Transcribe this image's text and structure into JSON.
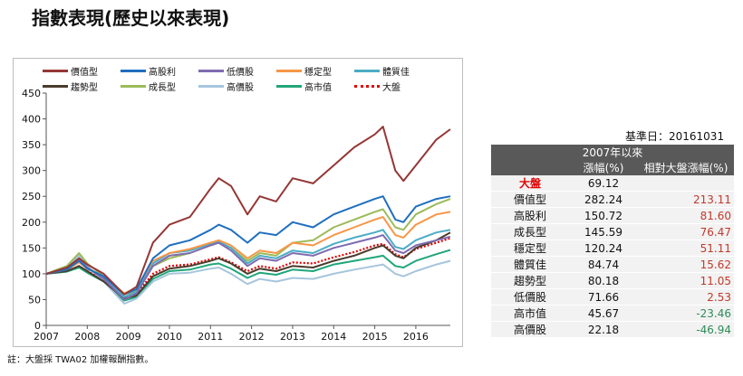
{
  "title": "指數表現(歷史以來表現)",
  "footnote": "註：大盤採 TWA02 加權報酬指數。",
  "base_date": "基準日：20161031",
  "table": {
    "header_top": "2007年以來",
    "col1": "漲幅(%)",
    "col2": "相對大盤漲幅(%)",
    "rows": [
      {
        "name": "大盤",
        "v1": "69.12",
        "v2": ""
      },
      {
        "name": "價值型",
        "v1": "282.24",
        "v2": "213.11"
      },
      {
        "name": "高股利",
        "v1": "150.72",
        "v2": "81.60"
      },
      {
        "name": "成長型",
        "v1": "145.59",
        "v2": "76.47"
      },
      {
        "name": "穩定型",
        "v1": "120.24",
        "v2": "51.11"
      },
      {
        "name": "體質佳",
        "v1": "84.74",
        "v2": "15.62"
      },
      {
        "name": "趨勢型",
        "v1": "80.18",
        "v2": "11.05"
      },
      {
        "name": "低價股",
        "v1": "71.66",
        "v2": "2.53"
      },
      {
        "name": "高市值",
        "v1": "45.67",
        "v2": "-23.46"
      },
      {
        "name": "高價股",
        "v1": "22.18",
        "v2": "-46.94"
      }
    ]
  },
  "chart_data": {
    "type": "line",
    "ylim": [
      0,
      450
    ],
    "yticks": [
      0,
      50,
      100,
      150,
      200,
      250,
      300,
      350,
      400,
      450
    ],
    "xlim": [
      2007,
      2016.84
    ],
    "xticks": [
      "2007",
      "2008",
      "2009",
      "2010",
      "2011",
      "2012",
      "2013",
      "2014",
      "2015",
      "2016"
    ],
    "legend_rows": [
      [
        "價值型",
        "高股利",
        "低價股",
        "穩定型",
        "體質佳"
      ],
      [
        "趨勢型",
        "成長型",
        "高價股",
        "高市值",
        "大盤"
      ]
    ],
    "series": [
      {
        "name": "價值型",
        "color": "#953735",
        "x": [
          2007,
          2007.5,
          2007.8,
          2008,
          2008.4,
          2008.9,
          2009.2,
          2009.6,
          2010,
          2010.5,
          2011,
          2011.2,
          2011.5,
          2011.9,
          2012.2,
          2012.6,
          2013,
          2013.5,
          2014,
          2014.5,
          2015,
          2015.2,
          2015.5,
          2015.7,
          2016,
          2016.5,
          2016.84
        ],
        "y": [
          100,
          112,
          130,
          118,
          100,
          60,
          75,
          160,
          195,
          210,
          265,
          285,
          270,
          215,
          250,
          240,
          285,
          275,
          310,
          345,
          370,
          385,
          300,
          280,
          310,
          360,
          380
        ]
      },
      {
        "name": "高股利",
        "color": "#1f6fbf",
        "x": [
          2007,
          2007.5,
          2007.8,
          2008,
          2008.4,
          2008.9,
          2009.2,
          2009.6,
          2010,
          2010.5,
          2011,
          2011.2,
          2011.5,
          2011.9,
          2012.2,
          2012.6,
          2013,
          2013.5,
          2014,
          2014.5,
          2015,
          2015.2,
          2015.5,
          2015.7,
          2016,
          2016.5,
          2016.84
        ],
        "y": [
          100,
          108,
          125,
          110,
          95,
          60,
          70,
          130,
          155,
          165,
          185,
          195,
          185,
          160,
          180,
          175,
          200,
          190,
          215,
          230,
          245,
          250,
          205,
          200,
          230,
          245,
          250
        ]
      },
      {
        "name": "低價股",
        "color": "#7f6bb0",
        "x": [
          2007,
          2007.5,
          2007.8,
          2008,
          2008.4,
          2008.9,
          2009.2,
          2009.6,
          2010,
          2010.5,
          2011,
          2011.2,
          2011.5,
          2011.9,
          2012.2,
          2012.6,
          2013,
          2013.5,
          2014,
          2014.5,
          2015,
          2015.2,
          2015.5,
          2015.7,
          2016,
          2016.5,
          2016.84
        ],
        "y": [
          100,
          110,
          128,
          112,
          90,
          50,
          62,
          115,
          135,
          140,
          155,
          160,
          145,
          115,
          130,
          125,
          140,
          135,
          150,
          160,
          170,
          175,
          145,
          140,
          155,
          165,
          172
        ]
      },
      {
        "name": "穩定型",
        "color": "#f79646",
        "x": [
          2007,
          2007.5,
          2007.8,
          2008,
          2008.4,
          2008.9,
          2009.2,
          2009.6,
          2010,
          2010.5,
          2011,
          2011.2,
          2011.5,
          2011.9,
          2012.2,
          2012.6,
          2013,
          2013.5,
          2014,
          2014.5,
          2015,
          2015.2,
          2015.5,
          2015.7,
          2016,
          2016.5,
          2016.84
        ],
        "y": [
          100,
          108,
          122,
          110,
          95,
          62,
          72,
          125,
          140,
          148,
          160,
          165,
          155,
          130,
          145,
          140,
          160,
          155,
          175,
          190,
          205,
          210,
          175,
          170,
          195,
          215,
          220
        ]
      },
      {
        "name": "體質佳",
        "color": "#4bacc6",
        "x": [
          2007,
          2007.5,
          2007.8,
          2008,
          2008.4,
          2008.9,
          2009.2,
          2009.6,
          2010,
          2010.5,
          2011,
          2011.2,
          2011.5,
          2011.9,
          2012.2,
          2012.6,
          2013,
          2013.5,
          2014,
          2014.5,
          2015,
          2015.2,
          2015.5,
          2015.7,
          2016,
          2016.5,
          2016.84
        ],
        "y": [
          100,
          110,
          130,
          112,
          92,
          55,
          65,
          120,
          140,
          145,
          158,
          162,
          150,
          120,
          135,
          130,
          145,
          140,
          158,
          170,
          180,
          185,
          152,
          148,
          165,
          180,
          185
        ]
      },
      {
        "name": "趨勢型",
        "color": "#4a3c2c",
        "x": [
          2007,
          2007.5,
          2007.8,
          2008,
          2008.4,
          2008.9,
          2009.2,
          2009.6,
          2010,
          2010.5,
          2011,
          2011.2,
          2011.5,
          2011.9,
          2012.2,
          2012.6,
          2013,
          2013.5,
          2014,
          2014.5,
          2015,
          2015.2,
          2015.5,
          2015.7,
          2016,
          2016.5,
          2016.84
        ],
        "y": [
          100,
          105,
          115,
          105,
          85,
          52,
          58,
          95,
          110,
          115,
          125,
          130,
          120,
          100,
          110,
          105,
          115,
          112,
          125,
          135,
          150,
          155,
          135,
          130,
          150,
          165,
          180
        ]
      },
      {
        "name": "成長型",
        "color": "#9bbb59",
        "x": [
          2007,
          2007.5,
          2007.8,
          2008,
          2008.4,
          2008.9,
          2009.2,
          2009.6,
          2010,
          2010.5,
          2011,
          2011.2,
          2011.5,
          2011.9,
          2012.2,
          2012.6,
          2013,
          2013.5,
          2014,
          2014.5,
          2015,
          2015.2,
          2015.5,
          2015.7,
          2016,
          2016.5,
          2016.84
        ],
        "y": [
          100,
          115,
          140,
          120,
          95,
          55,
          68,
          115,
          130,
          140,
          155,
          160,
          150,
          125,
          140,
          135,
          160,
          165,
          190,
          205,
          220,
          225,
          190,
          185,
          215,
          235,
          245
        ]
      },
      {
        "name": "高價股",
        "color": "#a6c5dc",
        "x": [
          2007,
          2007.5,
          2007.8,
          2008,
          2008.4,
          2008.9,
          2009.2,
          2009.6,
          2010,
          2010.5,
          2011,
          2011.2,
          2011.5,
          2011.9,
          2012.2,
          2012.6,
          2013,
          2013.5,
          2014,
          2014.5,
          2015,
          2015.2,
          2015.5,
          2015.7,
          2016,
          2016.5,
          2016.84
        ],
        "y": [
          100,
          112,
          135,
          115,
          85,
          42,
          52,
          85,
          100,
          102,
          110,
          112,
          100,
          80,
          90,
          85,
          92,
          90,
          100,
          108,
          115,
          118,
          100,
          95,
          105,
          118,
          125
        ]
      },
      {
        "name": "高市值",
        "color": "#21a67a",
        "x": [
          2007,
          2007.5,
          2007.8,
          2008,
          2008.4,
          2008.9,
          2009.2,
          2009.6,
          2010,
          2010.5,
          2011,
          2011.2,
          2011.5,
          2011.9,
          2012.2,
          2012.6,
          2013,
          2013.5,
          2014,
          2014.5,
          2015,
          2015.2,
          2015.5,
          2015.7,
          2016,
          2016.5,
          2016.84
        ],
        "y": [
          100,
          104,
          112,
          102,
          85,
          48,
          55,
          90,
          105,
          108,
          118,
          120,
          110,
          92,
          102,
          98,
          108,
          105,
          118,
          125,
          132,
          135,
          115,
          112,
          125,
          138,
          146
        ]
      },
      {
        "name": "大盤",
        "color": "#e00000",
        "dotted": true,
        "x": [
          2007,
          2007.5,
          2007.8,
          2008,
          2008.4,
          2008.9,
          2009.2,
          2009.6,
          2010,
          2010.5,
          2011,
          2011.2,
          2011.5,
          2011.9,
          2012.2,
          2012.6,
          2013,
          2013.5,
          2014,
          2014.5,
          2015,
          2015.2,
          2015.5,
          2015.7,
          2016,
          2016.5,
          2016.84
        ],
        "y": [
          100,
          105,
          115,
          105,
          88,
          55,
          62,
          100,
          115,
          118,
          128,
          132,
          122,
          105,
          115,
          110,
          122,
          120,
          132,
          142,
          155,
          158,
          138,
          132,
          148,
          160,
          169
        ]
      }
    ]
  }
}
